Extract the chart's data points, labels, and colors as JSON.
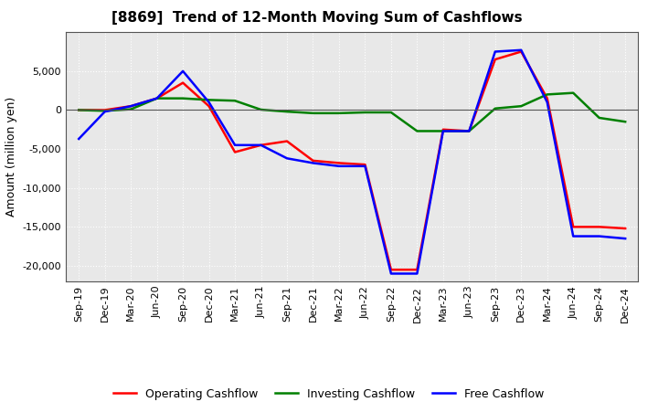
{
  "title": "[8869]  Trend of 12-Month Moving Sum of Cashflows",
  "ylabel": "Amount (million yen)",
  "x_labels": [
    "Sep-19",
    "Dec-19",
    "Mar-20",
    "Jun-20",
    "Sep-20",
    "Dec-20",
    "Mar-21",
    "Jun-21",
    "Sep-21",
    "Dec-21",
    "Mar-22",
    "Jun-22",
    "Sep-22",
    "Dec-22",
    "Mar-23",
    "Jun-23",
    "Sep-23",
    "Dec-23",
    "Mar-24",
    "Jun-24",
    "Sep-24",
    "Dec-24"
  ],
  "operating": [
    0,
    0,
    500,
    1500,
    3500,
    500,
    -5400,
    -4500,
    -4000,
    -6500,
    -6800,
    -7000,
    -20500,
    -20500,
    -2500,
    -2700,
    6500,
    7500,
    1500,
    -15000,
    -15000,
    -15200
  ],
  "investing": [
    0,
    -100,
    100,
    1500,
    1500,
    1300,
    1200,
    50,
    -200,
    -400,
    -400,
    -300,
    -300,
    -2700,
    -2700,
    -2700,
    200,
    500,
    2000,
    2200,
    -1000,
    -1500
  ],
  "free": [
    -3700,
    -200,
    500,
    1500,
    5000,
    1000,
    -4500,
    -4500,
    -6200,
    -6800,
    -7200,
    -7200,
    -21000,
    -21000,
    -2700,
    -2700,
    7500,
    7700,
    1000,
    -16200,
    -16200,
    -16500
  ],
  "operating_color": "#ff0000",
  "investing_color": "#008000",
  "free_color": "#0000ff",
  "ylim": [
    -22000,
    10000
  ],
  "yticks": [
    -20000,
    -15000,
    -10000,
    -5000,
    0,
    5000
  ],
  "background_color": "#ffffff",
  "plot_bg_color": "#e8e8e8",
  "grid_color": "#ffffff",
  "title_fontsize": 11,
  "axis_fontsize": 9,
  "tick_fontsize": 8,
  "legend_fontsize": 9,
  "line_width": 1.8
}
